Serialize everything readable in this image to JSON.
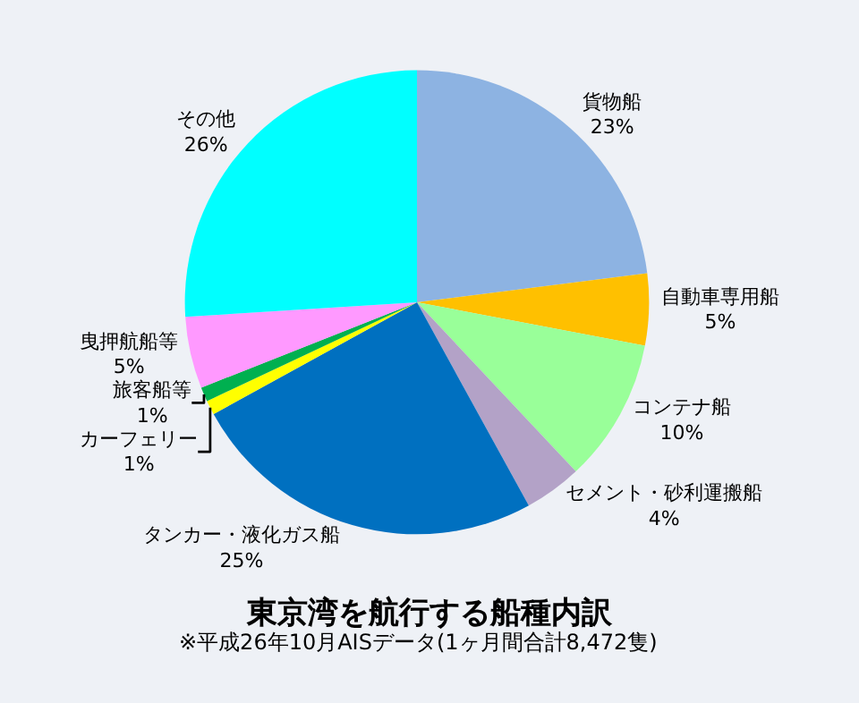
{
  "chart_data": {
    "type": "pie",
    "title": "東京湾を航行する船種内訳",
    "subtitle": "※平成26年10月AISデータ(1ヶ月間合計8,472隻)",
    "categories": [
      "貨物船",
      "自動車専用船",
      "コンテナ船",
      "セメント・砂利運搬船",
      "タンカー・液化ガス船",
      "カーフェリー",
      "旅客船等",
      "曳押航船等",
      "その他"
    ],
    "values": [
      23,
      5,
      10,
      4,
      25,
      1,
      1,
      5,
      26
    ],
    "value_labels": [
      "23%",
      "5%",
      "10%",
      "4%",
      "25%",
      "1%",
      "1%",
      "5%",
      "26%"
    ],
    "colors": [
      "#8db3e2",
      "#ffc000",
      "#99ff99",
      "#b3a2c7",
      "#0070c0",
      "#ffff00",
      "#00b050",
      "#ff99ff",
      "#00ffff"
    ],
    "legend": false
  }
}
